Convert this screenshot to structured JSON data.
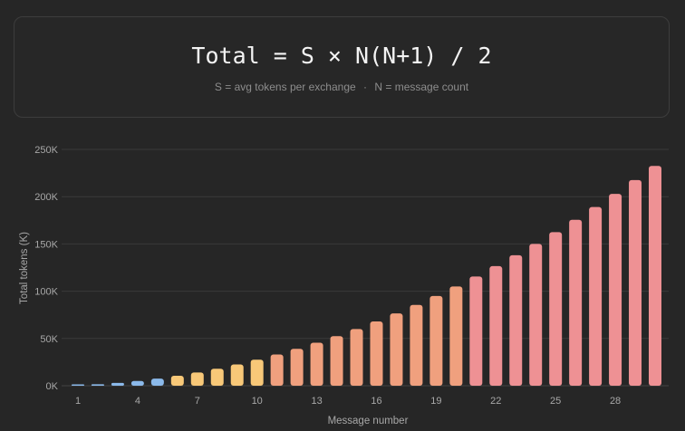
{
  "header": {
    "formula": "Total = S × N(N+1) / 2",
    "legend_s": "S = avg tokens per exchange",
    "separator": "·",
    "legend_n": "N = message count"
  },
  "chart_data": {
    "type": "bar",
    "xlabel": "Message number",
    "ylabel": "Total tokens (K)",
    "ylim": [
      0,
      250
    ],
    "yticks": [
      "0K",
      "50K",
      "100K",
      "150K",
      "200K",
      "250K"
    ],
    "xticks": [
      "1",
      "4",
      "7",
      "10",
      "13",
      "16",
      "19",
      "22",
      "25",
      "28"
    ],
    "grid": true,
    "categories": [
      1,
      2,
      3,
      4,
      5,
      6,
      7,
      8,
      9,
      10,
      11,
      12,
      13,
      14,
      15,
      16,
      17,
      18,
      19,
      20,
      21,
      22,
      23,
      24,
      25,
      26,
      27,
      28,
      29,
      30
    ],
    "values": [
      0.5,
      1.5,
      3,
      5,
      7.5,
      10.5,
      14,
      18,
      22.5,
      27.5,
      33,
      39,
      45.5,
      52.5,
      60,
      68,
      76.5,
      85.5,
      95,
      105,
      115.5,
      126.5,
      138,
      150,
      162.5,
      175.5,
      189,
      203,
      217.5,
      232.5
    ],
    "color_groups": [
      {
        "from": 1,
        "to": 5,
        "color": "#8bb9ea"
      },
      {
        "from": 6,
        "to": 10,
        "color": "#f8c878"
      },
      {
        "from": 11,
        "to": 20,
        "color": "#f0a07e"
      },
      {
        "from": 21,
        "to": 30,
        "color": "#ee9194"
      }
    ]
  }
}
